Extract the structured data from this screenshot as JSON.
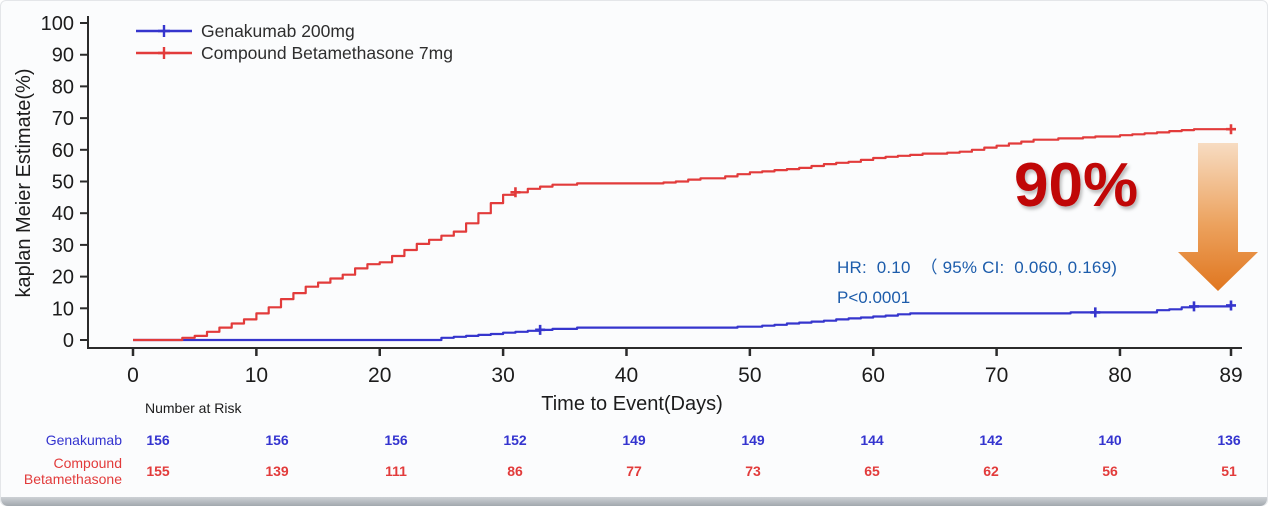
{
  "chart_data": {
    "type": "line",
    "subtype": "kaplan-meier-step",
    "title": "",
    "xlabel": "Time to Event(Days)",
    "ylabel": "kaplan Meier Estimate(%)",
    "xlim": [
      0,
      89
    ],
    "ylim": [
      0,
      100
    ],
    "x_ticks": [
      0,
      10,
      20,
      30,
      40,
      50,
      60,
      70,
      80,
      89
    ],
    "y_ticks": [
      0,
      10,
      20,
      30,
      40,
      50,
      60,
      70,
      80,
      90,
      100
    ],
    "grid": false,
    "legend_position": "top-left",
    "series": [
      {
        "name": "Genakumab 200mg",
        "color": "#3535cd",
        "step_points": [
          [
            0,
            0
          ],
          [
            25,
            0.7
          ],
          [
            26,
            1.0
          ],
          [
            27,
            1.3
          ],
          [
            28,
            1.6
          ],
          [
            29,
            1.9
          ],
          [
            30,
            2.3
          ],
          [
            31,
            2.6
          ],
          [
            32,
            2.9
          ],
          [
            33,
            3.2
          ],
          [
            34,
            3.5
          ],
          [
            36,
            3.9
          ],
          [
            49,
            4.2
          ],
          [
            51,
            4.5
          ],
          [
            52,
            4.8
          ],
          [
            53,
            5.2
          ],
          [
            54,
            5.5
          ],
          [
            55,
            5.8
          ],
          [
            56,
            6.1
          ],
          [
            57,
            6.5
          ],
          [
            58,
            6.8
          ],
          [
            59,
            7.1
          ],
          [
            60,
            7.4
          ],
          [
            61,
            7.7
          ],
          [
            62,
            8.1
          ],
          [
            63,
            8.4
          ],
          [
            75,
            8.4
          ],
          [
            76,
            8.7
          ],
          [
            82,
            8.7
          ],
          [
            83,
            9.4
          ],
          [
            84,
            9.7
          ],
          [
            85,
            10.3
          ],
          [
            86,
            10.6
          ],
          [
            89,
            10.9
          ]
        ],
        "censor_marks": [
          [
            33,
            3.2
          ],
          [
            78,
            8.7
          ],
          [
            86,
            10.6
          ],
          [
            89,
            10.9
          ]
        ]
      },
      {
        "name": "Compound Betamethasone 7mg",
        "color": "#e23b3b",
        "step_points": [
          [
            0,
            0
          ],
          [
            4,
            0.7
          ],
          [
            5,
            1.3
          ],
          [
            6,
            2.6
          ],
          [
            7,
            3.9
          ],
          [
            8,
            5.2
          ],
          [
            9,
            6.5
          ],
          [
            10,
            8.4
          ],
          [
            11,
            10.3
          ],
          [
            12,
            12.9
          ],
          [
            13,
            14.8
          ],
          [
            14,
            16.8
          ],
          [
            15,
            18.1
          ],
          [
            16,
            19.4
          ],
          [
            17,
            20.6
          ],
          [
            18,
            22.6
          ],
          [
            19,
            23.9
          ],
          [
            20,
            24.5
          ],
          [
            21,
            26.5
          ],
          [
            22,
            28.4
          ],
          [
            23,
            30.3
          ],
          [
            24,
            31.6
          ],
          [
            25,
            32.9
          ],
          [
            26,
            34.2
          ],
          [
            27,
            36.8
          ],
          [
            28,
            40.0
          ],
          [
            29,
            43.2
          ],
          [
            30,
            45.8
          ],
          [
            31,
            46.6
          ],
          [
            32,
            47.7
          ],
          [
            33,
            48.4
          ],
          [
            34,
            49.0
          ],
          [
            36,
            49.4
          ],
          [
            43,
            49.7
          ],
          [
            44,
            50.0
          ],
          [
            45,
            50.6
          ],
          [
            46,
            51.0
          ],
          [
            48,
            51.6
          ],
          [
            49,
            52.3
          ],
          [
            50,
            52.9
          ],
          [
            51,
            53.2
          ],
          [
            52,
            53.6
          ],
          [
            53,
            53.9
          ],
          [
            54,
            54.3
          ],
          [
            55,
            54.9
          ],
          [
            56,
            55.5
          ],
          [
            57,
            55.9
          ],
          [
            58,
            56.2
          ],
          [
            59,
            56.8
          ],
          [
            60,
            57.4
          ],
          [
            61,
            57.8
          ],
          [
            62,
            58.1
          ],
          [
            63,
            58.4
          ],
          [
            64,
            58.8
          ],
          [
            66,
            59.1
          ],
          [
            67,
            59.4
          ],
          [
            68,
            60.0
          ],
          [
            69,
            60.7
          ],
          [
            70,
            61.3
          ],
          [
            71,
            62.0
          ],
          [
            72,
            62.6
          ],
          [
            73,
            63.2
          ],
          [
            75,
            63.6
          ],
          [
            77,
            63.9
          ],
          [
            78,
            64.2
          ],
          [
            80,
            64.6
          ],
          [
            81,
            64.9
          ],
          [
            82,
            65.2
          ],
          [
            83,
            65.5
          ],
          [
            84,
            65.9
          ],
          [
            85,
            66.2
          ],
          [
            86,
            66.5
          ],
          [
            89,
            66.5
          ]
        ],
        "censor_marks": [
          [
            31,
            46.6
          ],
          [
            89,
            66.5
          ]
        ]
      }
    ]
  },
  "annotations": {
    "hr_text": "HR:  0.10  （ 95% CI:  0.060, 0.169)",
    "p_text": "P<0.0001",
    "big_percent": "90%",
    "hr_color": "#1c5cab",
    "big_percent_color": "#c00707",
    "arrow_color_top": "#f7dcc2",
    "arrow_color_bottom": "#e0761f"
  },
  "risk_table": {
    "title": "Number at Risk",
    "rows": [
      {
        "label": "Genakumab",
        "color": "#3434cf",
        "values": [
          "156",
          "156",
          "156",
          "152",
          "149",
          "149",
          "144",
          "142",
          "140",
          "136"
        ]
      },
      {
        "label": "Compound Betamethasone",
        "color": "#e23b3b",
        "values": [
          "155",
          "139",
          "111",
          "86",
          "77",
          "73",
          "65",
          "62",
          "56",
          "51"
        ]
      }
    ]
  }
}
